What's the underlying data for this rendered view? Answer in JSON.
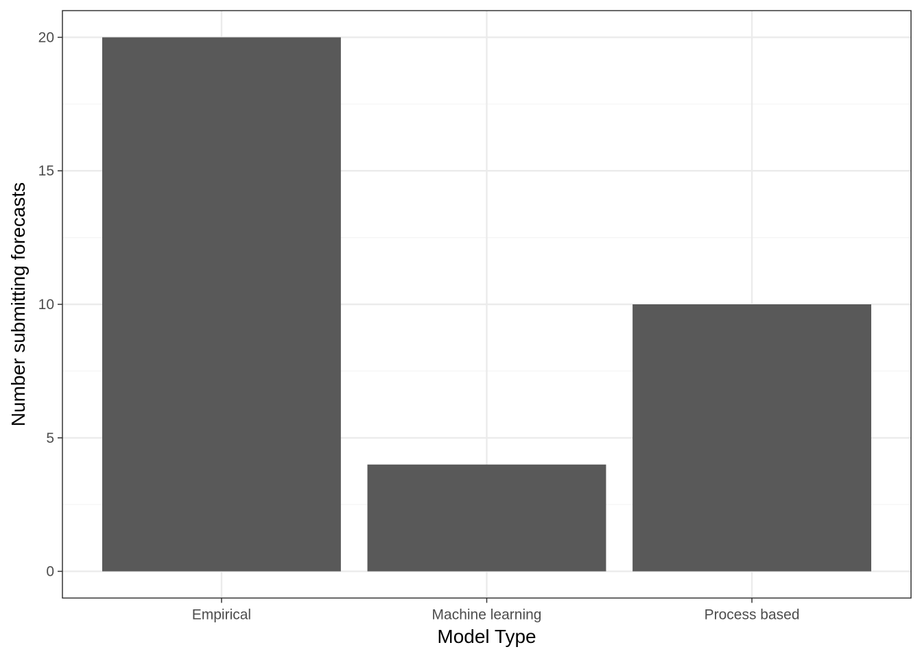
{
  "chart_data": {
    "type": "bar",
    "title": "",
    "xlabel": "Model Type",
    "ylabel": "Number submitting forecasts",
    "categories": [
      "Empirical",
      "Machine learning",
      "Process based"
    ],
    "values": [
      20,
      4,
      10
    ],
    "ylim": [
      -1,
      21
    ],
    "yticks": [
      0,
      5,
      10,
      15,
      20
    ],
    "grid": true,
    "legend": "none",
    "colors": {
      "bar": "#595959",
      "panel_border": "#333333",
      "grid_major": "#ebebeb",
      "grid_minor": "#f5f5f5",
      "tick_text": "#4d4d4d"
    }
  }
}
